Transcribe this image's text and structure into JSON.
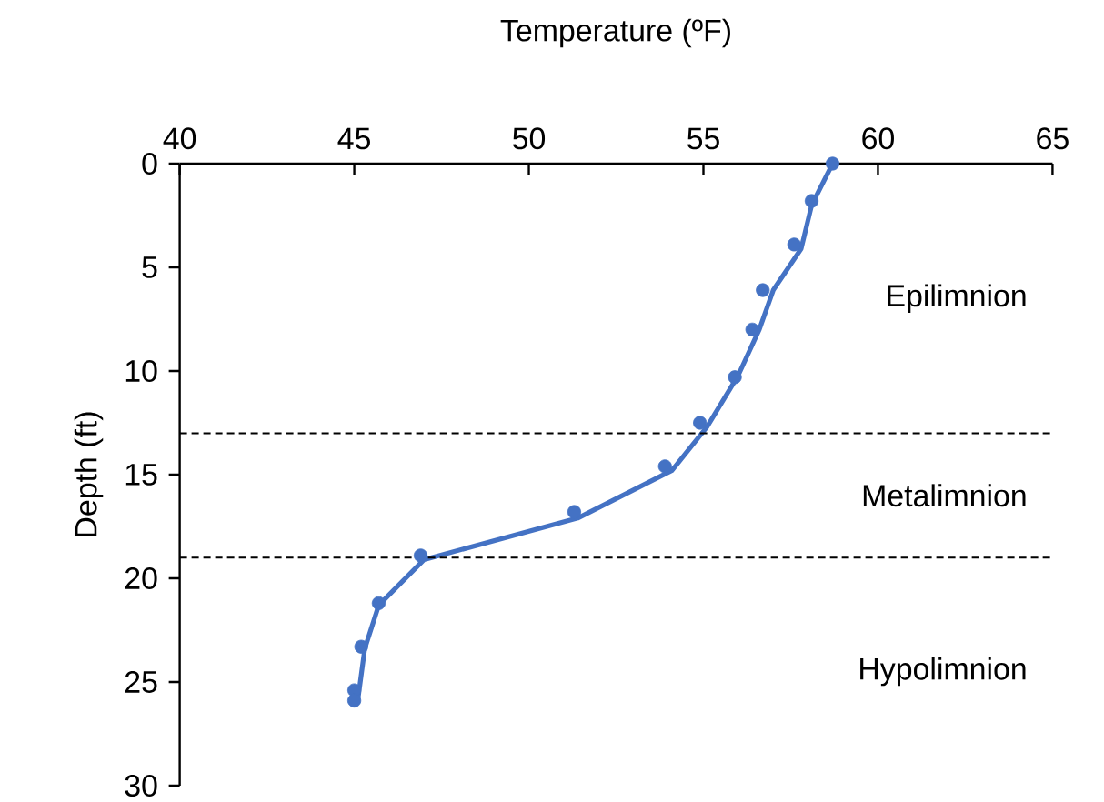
{
  "chart_data": {
    "type": "line",
    "xlabel": "Temperature (ºF)",
    "ylabel": "Depth (ft)",
    "xlim": [
      40,
      65
    ],
    "xticks": [
      40,
      45,
      50,
      55,
      60,
      65
    ],
    "ylim": [
      30,
      0
    ],
    "yticks": [
      0,
      5,
      10,
      15,
      20,
      25,
      30
    ],
    "series": [
      {
        "type": "scatter",
        "marker": "circle",
        "color": "#4472c4",
        "x": [
          58.7,
          58.1,
          57.6,
          56.7,
          56.4,
          55.9,
          54.9,
          53.9,
          51.3,
          46.9,
          45.7,
          45.2,
          45.0,
          45.0
        ],
        "values": [
          0,
          1.8,
          3.9,
          6.1,
          8.0,
          10.3,
          12.5,
          14.6,
          16.8,
          18.9,
          21.2,
          23.3,
          25.4,
          25.9
        ]
      },
      {
        "type": "line",
        "line_style": "solid",
        "color": "#4472c4",
        "x": [
          58.7,
          58.1,
          57.8,
          57.0,
          56.6,
          56.0,
          55.1,
          54.1,
          51.4,
          47.0,
          45.7,
          45.3,
          45.1
        ],
        "values": [
          0,
          2.0,
          4.1,
          6.1,
          8.0,
          10.2,
          12.7,
          14.8,
          17.1,
          19.1,
          21.3,
          23.4,
          25.9
        ]
      }
    ],
    "ref_lines": [
      {
        "axis": "y",
        "value": 13,
        "color": "#000000",
        "line_style": "dashed"
      },
      {
        "axis": "y",
        "value": 19,
        "color": "#000000",
        "line_style": "dashed"
      }
    ],
    "annotations": [
      "Epilimnion",
      "Metalimnion",
      "Hypolimnion"
    ]
  }
}
